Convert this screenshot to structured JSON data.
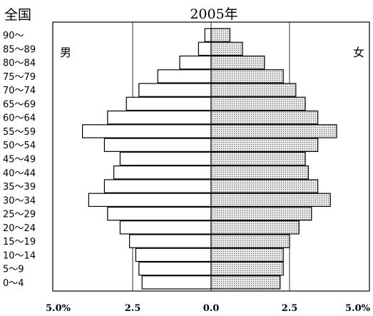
{
  "header": {
    "region": "全国",
    "year": "2005年"
  },
  "legend": {
    "male": "男",
    "female": "女"
  },
  "chart_data": {
    "type": "bar",
    "orientation": "horizontal",
    "subtype": "population-pyramid",
    "title": "2005年",
    "region": "全国",
    "categories": [
      "90～",
      "85～89",
      "80～84",
      "75～79",
      "70～74",
      "65～69",
      "60～64",
      "55～59",
      "50～54",
      "45～49",
      "40～44",
      "35～39",
      "30～34",
      "25～29",
      "20～24",
      "15～19",
      "10～14",
      "5～9",
      "0～4"
    ],
    "series": [
      {
        "name": "男",
        "side": "left",
        "color": "#ffffff",
        "values": [
          0.2,
          0.4,
          1.0,
          1.7,
          2.3,
          2.7,
          3.3,
          4.1,
          3.4,
          2.9,
          3.1,
          3.4,
          3.9,
          3.3,
          2.9,
          2.6,
          2.4,
          2.3,
          2.2
        ]
      },
      {
        "name": "女",
        "side": "right",
        "color": "#cfcfcf",
        "values": [
          0.6,
          1.0,
          1.7,
          2.3,
          2.7,
          3.0,
          3.4,
          4.0,
          3.4,
          3.0,
          3.1,
          3.4,
          3.8,
          3.2,
          2.8,
          2.5,
          2.3,
          2.3,
          2.2
        ]
      }
    ],
    "xlabel": "",
    "ylabel": "",
    "xlim": [
      -5.0,
      5.0
    ],
    "x_ticks": [
      "5.0%",
      "2.5",
      "0.0",
      "2.5",
      "5.0%"
    ],
    "x_tick_values": [
      -5.0,
      -2.5,
      0.0,
      2.5,
      5.0
    ],
    "grid": "vertical lines at 2.5%",
    "legend_position": "male top-left, female top-right"
  }
}
